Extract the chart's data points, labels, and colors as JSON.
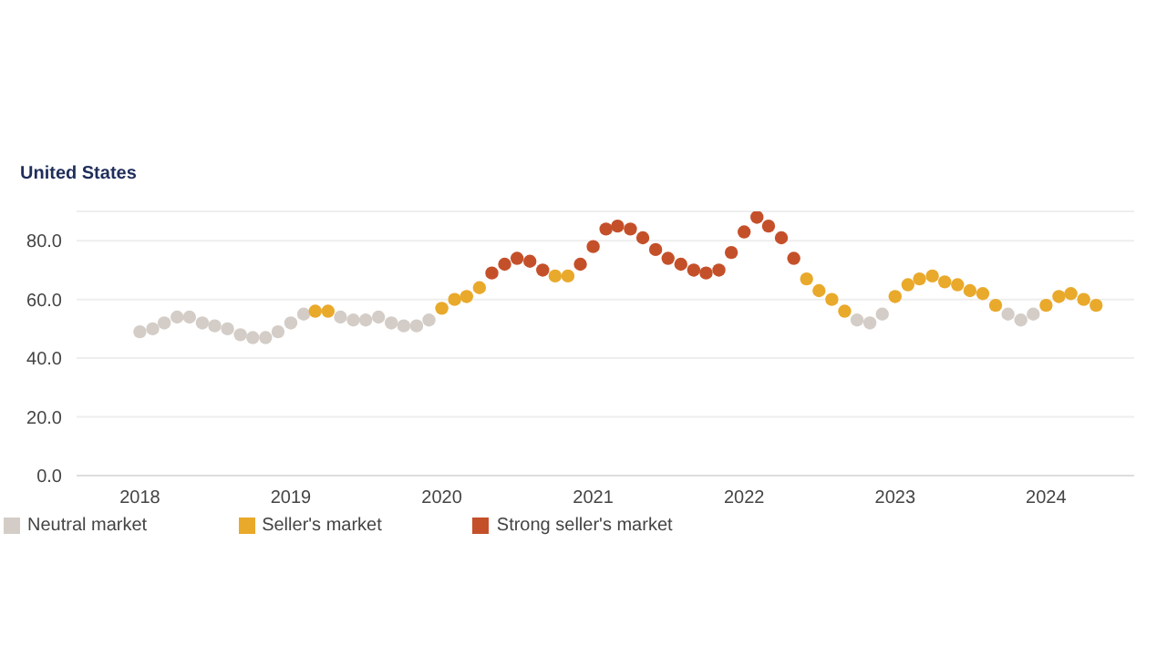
{
  "chart_data": {
    "type": "scatter",
    "title": "United States",
    "x": [
      "2018-01",
      "2018-02",
      "2018-03",
      "2018-04",
      "2018-05",
      "2018-06",
      "2018-07",
      "2018-08",
      "2018-09",
      "2018-10",
      "2018-11",
      "2018-12",
      "2019-01",
      "2019-02",
      "2019-03",
      "2019-04",
      "2019-05",
      "2019-06",
      "2019-07",
      "2019-08",
      "2019-09",
      "2019-10",
      "2019-11",
      "2019-12",
      "2020-01",
      "2020-02",
      "2020-03",
      "2020-04",
      "2020-05",
      "2020-06",
      "2020-07",
      "2020-08",
      "2020-09",
      "2020-10",
      "2020-11",
      "2020-12",
      "2021-01",
      "2021-02",
      "2021-03",
      "2021-04",
      "2021-05",
      "2021-06",
      "2021-07",
      "2021-08",
      "2021-09",
      "2021-10",
      "2021-11",
      "2021-12",
      "2022-01",
      "2022-02",
      "2022-03",
      "2022-04",
      "2022-05",
      "2022-06",
      "2022-07",
      "2022-08",
      "2022-09",
      "2022-10",
      "2022-11",
      "2022-12",
      "2023-01",
      "2023-02",
      "2023-03",
      "2023-04",
      "2023-05",
      "2023-06",
      "2023-07",
      "2023-08",
      "2023-09",
      "2023-10",
      "2023-11",
      "2023-12",
      "2024-01",
      "2024-02",
      "2024-03",
      "2024-04",
      "2024-05"
    ],
    "series": [
      {
        "name": "Neutral market",
        "color": "#d4cdc7",
        "values": [
          49,
          50,
          52,
          54,
          54,
          52,
          51,
          50,
          48,
          47,
          47,
          49,
          52,
          55,
          null,
          null,
          54,
          53,
          53,
          54,
          52,
          51,
          51,
          53,
          null,
          null,
          null,
          null,
          null,
          null,
          null,
          null,
          null,
          null,
          null,
          null,
          null,
          null,
          null,
          null,
          null,
          null,
          null,
          null,
          null,
          null,
          null,
          null,
          null,
          null,
          null,
          null,
          null,
          null,
          null,
          null,
          null,
          53,
          52,
          55,
          null,
          null,
          null,
          null,
          null,
          null,
          null,
          null,
          null,
          55,
          53,
          55,
          null,
          null,
          null,
          null,
          null
        ]
      },
      {
        "name": "Seller's market",
        "color": "#e9a92b",
        "values": [
          null,
          null,
          null,
          null,
          null,
          null,
          null,
          null,
          null,
          null,
          null,
          null,
          null,
          null,
          56,
          56,
          null,
          null,
          null,
          null,
          null,
          null,
          null,
          null,
          57,
          60,
          61,
          64,
          null,
          null,
          null,
          null,
          null,
          68,
          68,
          null,
          null,
          null,
          null,
          null,
          null,
          null,
          null,
          null,
          null,
          null,
          null,
          null,
          null,
          null,
          null,
          null,
          null,
          67,
          63,
          60,
          56,
          null,
          null,
          null,
          61,
          65,
          67,
          68,
          66,
          65,
          63,
          62,
          58,
          null,
          null,
          null,
          58,
          61,
          62,
          60,
          58
        ]
      },
      {
        "name": "Strong seller's market",
        "color": "#c4502a",
        "values": [
          null,
          null,
          null,
          null,
          null,
          null,
          null,
          null,
          null,
          null,
          null,
          null,
          null,
          null,
          null,
          null,
          null,
          null,
          null,
          null,
          null,
          null,
          null,
          null,
          null,
          null,
          null,
          null,
          69,
          72,
          74,
          73,
          70,
          null,
          null,
          72,
          78,
          84,
          85,
          84,
          81,
          77,
          74,
          72,
          70,
          69,
          70,
          76,
          83,
          88,
          85,
          81,
          74,
          null,
          null,
          null,
          null,
          null,
          null,
          null,
          null,
          null,
          null,
          null,
          null,
          null,
          null,
          null,
          null,
          null,
          null,
          null,
          null,
          null,
          null,
          null,
          null
        ]
      }
    ],
    "xlim": [
      "2017-08",
      "2024-08"
    ],
    "xticks": [
      "2018",
      "2019",
      "2020",
      "2021",
      "2022",
      "2023",
      "2024"
    ],
    "ylim": [
      0,
      90
    ],
    "yticks": [
      {
        "value": 0,
        "label": "0.0"
      },
      {
        "value": 20,
        "label": "20.0"
      },
      {
        "value": 40,
        "label": "40.0"
      },
      {
        "value": 60,
        "label": "60.0"
      },
      {
        "value": 80,
        "label": "80.0"
      }
    ],
    "grid": "y",
    "legend": "bottom left",
    "marker": "circle"
  }
}
